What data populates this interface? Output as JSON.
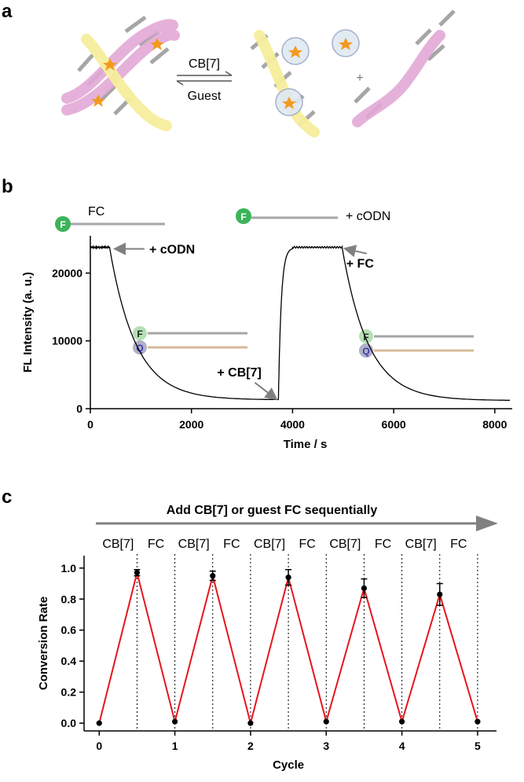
{
  "panels": {
    "a": {
      "label": "a",
      "arrow_top_label": "CB[7]",
      "arrow_bottom_label": "Guest",
      "plus_sign": "+"
    },
    "b": {
      "label": "b",
      "icon_top_left_label": "FC",
      "icon_top_right_label": "+ cODN",
      "fluor_letter": "F",
      "quencher_letter": "Q",
      "annotations": [
        "+ cODN",
        "+ CB[7]",
        "+ FC"
      ]
    },
    "c": {
      "label": "c",
      "header_arrow_text": "Add CB[7] or guest FC sequentially",
      "top_labels": [
        "CB[7]",
        "FC",
        "CB[7]",
        "FC",
        "CB[7]",
        "FC",
        "CB[7]",
        "FC",
        "CB[7]",
        "FC"
      ]
    }
  },
  "colors": {
    "pink_strand": "#e2a9d6",
    "yellow_strand": "#f5ee9c",
    "rung_gray": "#a6a6a6",
    "orange_star": "#f39a1e",
    "red_line": "#e8141c",
    "arrow_gray": "#808080",
    "fluor_green": "#3cb45a",
    "quencher_blue": "#3a3aa8"
  },
  "chart_data": [
    {
      "id": "b",
      "type": "line",
      "xlabel": "Time / s",
      "ylabel": "FL Intensity (a. u.)",
      "xlim": [
        0,
        8500
      ],
      "ylim": [
        0,
        25500
      ],
      "xticks": [
        0,
        2000,
        4000,
        6000,
        8000
      ],
      "xtick_labels": [
        "0",
        "2000",
        "4000",
        "6000",
        "8000"
      ],
      "yticks": [
        0,
        10000,
        20000
      ],
      "ytick_labels": [
        "0",
        "10000",
        "20000"
      ],
      "series": [
        {
          "name": "fluorescence",
          "segments": [
            {
              "phase": "plateau",
              "x_start": 0,
              "x_end": 380,
              "level": 23800
            },
            {
              "phase": "decay",
              "x_start": 380,
              "x_end": 3720,
              "from": 23800,
              "to": 1300,
              "tau": 520
            },
            {
              "phase": "rise",
              "x_start": 3720,
              "x_end": 4000,
              "from": 1300,
              "to": 23600
            },
            {
              "phase": "plateau",
              "x_start": 4000,
              "x_end": 4980,
              "level": 23800
            },
            {
              "phase": "decay",
              "x_start": 4980,
              "x_end": 8300,
              "from": 23800,
              "to": 1200,
              "tau": 520
            }
          ]
        }
      ],
      "annotations": [
        {
          "text": "+ cODN",
          "x": 450,
          "y": 23800
        },
        {
          "text": "+ CB[7]",
          "x": 3720,
          "y": 1300
        },
        {
          "text": "+ FC",
          "x": 5000,
          "y": 23800
        }
      ]
    },
    {
      "id": "c",
      "type": "line",
      "xlabel": "Cycle",
      "ylabel": "Conversion Rate",
      "xlim": [
        -0.2,
        5.25
      ],
      "ylim": [
        -0.05,
        1.08
      ],
      "xticks": [
        0,
        1,
        2,
        3,
        4,
        5
      ],
      "xtick_labels": [
        "0",
        "1",
        "2",
        "3",
        "4",
        "5"
      ],
      "yticks": [
        0.0,
        0.2,
        0.4,
        0.6,
        0.8,
        1.0
      ],
      "ytick_labels": [
        "0.0",
        "0.2",
        "0.4",
        "0.6",
        "0.8",
        "1.0"
      ],
      "vlines": [
        0.5,
        1,
        1.5,
        2,
        2.5,
        3,
        3.5,
        4,
        4.5,
        5
      ],
      "series": [
        {
          "name": "conversion",
          "x": [
            0,
            0.5,
            1,
            1.5,
            2,
            2.5,
            3,
            3.5,
            4,
            4.5,
            5
          ],
          "y": [
            0.0,
            0.97,
            0.01,
            0.95,
            0.0,
            0.94,
            0.01,
            0.87,
            0.01,
            0.83,
            0.01
          ],
          "err": [
            0,
            0.02,
            0,
            0.03,
            0,
            0.05,
            0,
            0.06,
            0,
            0.07,
            0
          ]
        }
      ]
    }
  ]
}
